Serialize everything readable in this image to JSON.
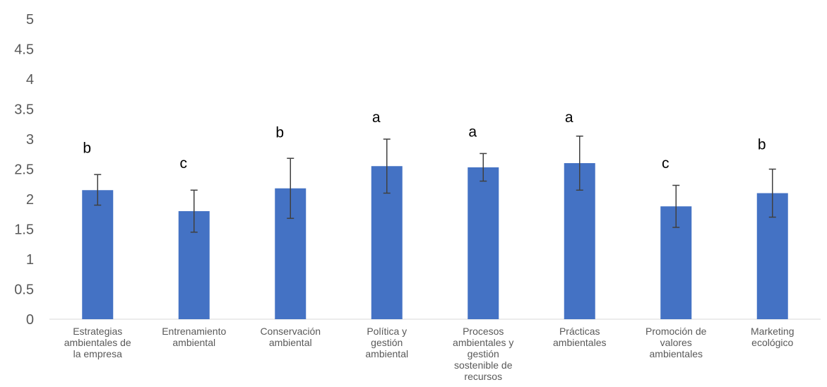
{
  "chart_data": {
    "type": "bar",
    "title": "",
    "xlabel": "",
    "ylabel": "",
    "ylim": [
      0,
      5
    ],
    "yticks": [
      "0",
      "0.5",
      "1",
      "1.5",
      "2",
      "2.5",
      "3",
      "3.5",
      "4",
      "4.5",
      "5"
    ],
    "grid": false,
    "legend": "none",
    "bar_color": "#4472C4",
    "error_color": "#404040",
    "categories": [
      [
        "Estrategias",
        "ambientales de",
        "la empresa"
      ],
      [
        "Entrenamiento",
        "ambiental"
      ],
      [
        "Conservación",
        "ambiental"
      ],
      [
        "Política y",
        "gestión",
        "ambiental"
      ],
      [
        "Procesos",
        "ambientales y",
        "gestión",
        "sostenible de",
        "recursos"
      ],
      [
        "Prácticas",
        "ambientales"
      ],
      [
        "Promoción de",
        "valores",
        "ambientales"
      ],
      [
        "Marketing",
        "ecológico"
      ]
    ],
    "values": [
      2.15,
      1.8,
      2.18,
      2.55,
      2.53,
      2.6,
      1.88,
      2.1
    ],
    "error_low": [
      1.9,
      1.45,
      1.68,
      2.1,
      2.3,
      2.15,
      1.53,
      1.7
    ],
    "error_high": [
      2.41,
      2.15,
      2.68,
      3.0,
      2.76,
      3.05,
      2.23,
      2.5
    ],
    "significance_labels": [
      "b",
      "c",
      "b",
      "a",
      "a",
      "a",
      "c",
      "b"
    ],
    "significance_y": [
      2.77,
      2.52,
      3.03,
      3.28,
      3.04,
      3.28,
      2.52,
      2.83
    ]
  }
}
